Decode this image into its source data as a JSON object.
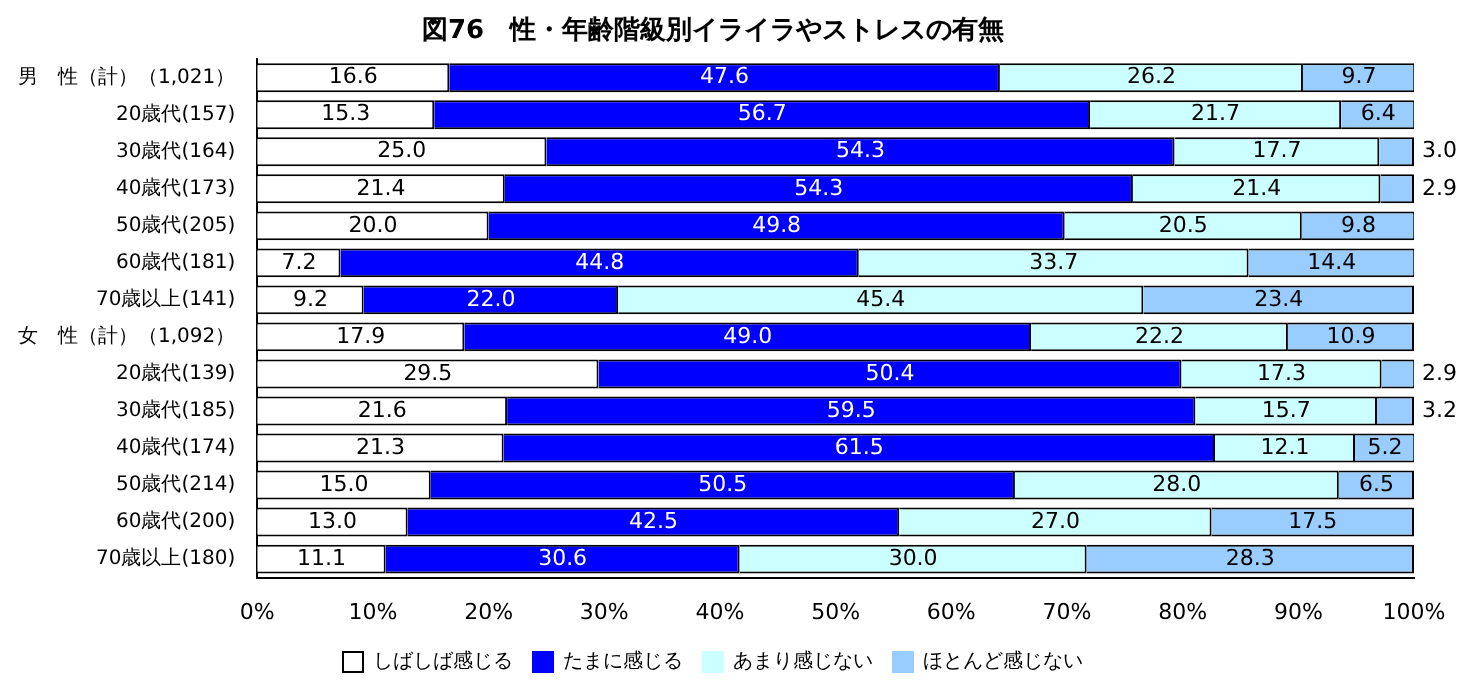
{
  "chart_data": {
    "type": "bar",
    "orientation": "horizontal",
    "stacked": true,
    "title": "図76　性・年齢階級別イライラやストレスの有無",
    "categories": [
      "男　性（計）（1,021）",
      "20歳代(157)",
      "30歳代(164)",
      "40歳代(173)",
      "50歳代(205)",
      "60歳代(181)",
      "70歳以上(141)",
      "女　性（計）（1,092）",
      "20歳代(139)",
      "30歳代(185)",
      "40歳代(174)",
      "50歳代(214)",
      "60歳代(200)",
      "70歳以上(180)"
    ],
    "series": [
      {
        "name": "しばしば感じる",
        "color": "#ffffff",
        "values": [
          16.6,
          15.3,
          25.0,
          21.4,
          20.0,
          7.2,
          9.2,
          17.9,
          29.5,
          21.6,
          21.3,
          15.0,
          13.0,
          11.1
        ],
        "value_labels": [
          "16.6",
          "15.3",
          "25.0",
          "21.4",
          "20.0",
          "7.2",
          "9.2",
          "17.9",
          "29.5",
          "21.6",
          "21.3",
          "15.0",
          "13.0",
          "11.1"
        ]
      },
      {
        "name": "たまに感じる",
        "color": "#0000ff",
        "values": [
          47.6,
          56.7,
          54.3,
          54.3,
          49.8,
          44.8,
          22.0,
          49.0,
          50.4,
          59.5,
          61.5,
          50.5,
          42.5,
          30.6
        ],
        "value_labels": [
          "47.6",
          "56.7",
          "54.3",
          "54.3",
          "49.8",
          "44.8",
          "22.0",
          "49.0",
          "50.4",
          "59.5",
          "61.5",
          "50.5",
          "42.5",
          "30.6"
        ]
      },
      {
        "name": "あまり感じない",
        "color": "#ccffff",
        "values": [
          26.2,
          21.7,
          17.7,
          21.4,
          20.5,
          33.7,
          45.4,
          22.2,
          17.3,
          15.7,
          12.1,
          28.0,
          27.0,
          30.0
        ],
        "value_labels": [
          "26.2",
          "21.7",
          "17.7",
          "21.4",
          "20.5",
          "33.7",
          "45.4",
          "22.2",
          "17.3",
          "15.7",
          "12.1",
          "28.0",
          "27.0",
          "30.0"
        ]
      },
      {
        "name": "ほとんど感じない",
        "color": "#99ccff",
        "values": [
          9.7,
          6.4,
          3.0,
          2.9,
          9.8,
          14.4,
          23.4,
          10.9,
          2.9,
          3.2,
          5.2,
          6.5,
          17.5,
          28.3
        ],
        "value_labels": [
          "9.7",
          "6.4",
          "3.0",
          "2.9",
          "9.8",
          "14.4",
          "23.4",
          "10.9",
          "2.9",
          "3.2",
          "5.2",
          "6.5",
          "17.5",
          "28.3"
        ]
      }
    ],
    "xlim": [
      0,
      100
    ],
    "xticks": [
      {
        "value": 0,
        "label": "0%"
      },
      {
        "value": 10,
        "label": "10%"
      },
      {
        "value": 20,
        "label": "20%"
      },
      {
        "value": 30,
        "label": "30%"
      },
      {
        "value": 40,
        "label": "40%"
      },
      {
        "value": 50,
        "label": "50%"
      },
      {
        "value": 60,
        "label": "60%"
      },
      {
        "value": 70,
        "label": "70%"
      },
      {
        "value": 80,
        "label": "80%"
      },
      {
        "value": 90,
        "label": "90%"
      },
      {
        "value": 100,
        "label": "100%"
      }
    ],
    "grid": false,
    "legend": "bottom"
  }
}
